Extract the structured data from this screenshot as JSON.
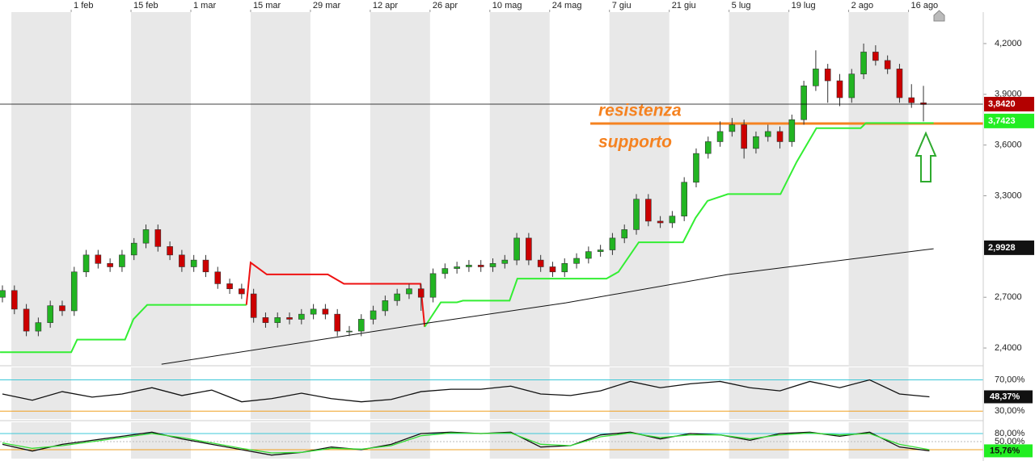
{
  "chart_data": [
    {
      "type": "candlestick",
      "xlim": [
        0,
        164
      ],
      "ylim": [
        2.3,
        4.386
      ],
      "xticks": [
        {
          "value": 11.5,
          "label": "1 feb"
        },
        {
          "value": 21.5,
          "label": "15 feb"
        },
        {
          "value": 31.5,
          "label": "1 mar"
        },
        {
          "value": 41.5,
          "label": "15 mar"
        },
        {
          "value": 51.5,
          "label": "29 mar"
        },
        {
          "value": 61.5,
          "label": "12 apr"
        },
        {
          "value": 71.5,
          "label": "26 apr"
        },
        {
          "value": 81.5,
          "label": "10 mag"
        },
        {
          "value": 91.5,
          "label": "24 mag"
        },
        {
          "value": 101.5,
          "label": "7 giu"
        },
        {
          "value": 111.5,
          "label": "21 giu"
        },
        {
          "value": 121.5,
          "label": "5 lug"
        },
        {
          "value": 131.5,
          "label": "19 lug"
        },
        {
          "value": 141.5,
          "label": "2 ago"
        },
        {
          "value": 151.5,
          "label": "16 ago"
        }
      ],
      "yticks": [
        {
          "value": 4.2,
          "label": "4,2000"
        },
        {
          "value": 3.9,
          "label": "3,9000"
        },
        {
          "value": 3.6,
          "label": "3,6000"
        },
        {
          "value": 3.3,
          "label": "3,3000"
        },
        {
          "value": 2.7,
          "label": "2,7000"
        },
        {
          "value": 2.4,
          "label": "2,4000"
        }
      ],
      "x": [
        0,
        2,
        4,
        6,
        8,
        10,
        12,
        14,
        16,
        18,
        20,
        22,
        24,
        26,
        28,
        30,
        32,
        34,
        36,
        38,
        40,
        42,
        44,
        46,
        48,
        50,
        52,
        54,
        56,
        58,
        60,
        62,
        64,
        66,
        68,
        70,
        72,
        74,
        76,
        78,
        80,
        82,
        84,
        86,
        88,
        90,
        92,
        94,
        96,
        98,
        100,
        102,
        104,
        106,
        108,
        110,
        112,
        114,
        116,
        118,
        120,
        122,
        124,
        126,
        128,
        130,
        132,
        134,
        136,
        138,
        140,
        142,
        144,
        146,
        148,
        150,
        152,
        154
      ],
      "open": [
        2.7,
        2.74,
        2.63,
        2.5,
        2.55,
        2.65,
        2.62,
        2.85,
        2.95,
        2.9,
        2.88,
        2.95,
        3.02,
        3.1,
        3.0,
        2.95,
        2.88,
        2.92,
        2.85,
        2.78,
        2.75,
        2.72,
        2.58,
        2.55,
        2.58,
        2.57,
        2.6,
        2.63,
        2.6,
        2.5,
        2.5,
        2.57,
        2.62,
        2.68,
        2.72,
        2.75,
        2.7,
        2.84,
        2.87,
        2.88,
        2.89,
        2.88,
        2.9,
        2.92,
        3.05,
        2.92,
        2.88,
        2.85,
        2.9,
        2.93,
        2.97,
        2.98,
        3.05,
        3.1,
        3.28,
        3.15,
        3.14,
        3.18,
        3.38,
        3.55,
        3.62,
        3.68,
        3.72,
        3.58,
        3.65,
        3.68,
        3.62,
        3.75,
        3.95,
        4.05,
        3.98,
        3.88,
        4.02,
        4.15,
        4.1,
        4.05,
        3.88,
        3.85
      ],
      "high": [
        2.77,
        2.77,
        2.66,
        2.58,
        2.68,
        2.68,
        2.88,
        2.98,
        2.98,
        2.93,
        2.98,
        3.05,
        3.13,
        3.13,
        3.03,
        2.98,
        2.95,
        2.95,
        2.88,
        2.81,
        2.78,
        2.75,
        2.61,
        2.61,
        2.61,
        2.63,
        2.66,
        2.66,
        2.63,
        2.53,
        2.6,
        2.65,
        2.71,
        2.75,
        2.78,
        2.78,
        2.87,
        2.9,
        2.91,
        2.92,
        2.92,
        2.93,
        2.95,
        3.08,
        3.08,
        2.95,
        2.91,
        2.93,
        2.96,
        3.0,
        3.01,
        3.08,
        3.13,
        3.31,
        3.31,
        3.18,
        3.21,
        3.41,
        3.58,
        3.65,
        3.74,
        3.76,
        3.75,
        3.68,
        3.72,
        3.71,
        3.78,
        3.98,
        4.16,
        4.08,
        4.02,
        4.05,
        4.2,
        4.19,
        4.13,
        4.08,
        3.96,
        3.95
      ],
      "low": [
        2.67,
        2.6,
        2.47,
        2.47,
        2.52,
        2.59,
        2.59,
        2.82,
        2.87,
        2.85,
        2.85,
        2.92,
        2.99,
        2.97,
        2.92,
        2.85,
        2.85,
        2.82,
        2.75,
        2.72,
        2.69,
        2.55,
        2.52,
        2.52,
        2.54,
        2.54,
        2.57,
        2.57,
        2.47,
        2.47,
        2.47,
        2.54,
        2.59,
        2.65,
        2.69,
        2.62,
        2.67,
        2.81,
        2.84,
        2.85,
        2.85,
        2.85,
        2.87,
        2.89,
        2.89,
        2.85,
        2.82,
        2.82,
        2.87,
        2.9,
        2.94,
        2.95,
        3.02,
        3.07,
        3.12,
        3.11,
        3.11,
        3.15,
        3.35,
        3.52,
        3.59,
        3.65,
        3.52,
        3.55,
        3.62,
        3.58,
        3.59,
        3.72,
        3.92,
        3.85,
        3.83,
        3.85,
        3.99,
        4.07,
        4.02,
        3.85,
        3.82,
        3.74
      ],
      "close": [
        2.74,
        2.63,
        2.5,
        2.55,
        2.65,
        2.62,
        2.85,
        2.95,
        2.9,
        2.88,
        2.95,
        3.02,
        3.1,
        3.0,
        2.95,
        2.88,
        2.92,
        2.85,
        2.78,
        2.75,
        2.72,
        2.58,
        2.55,
        2.58,
        2.57,
        2.6,
        2.63,
        2.6,
        2.5,
        2.5,
        2.57,
        2.62,
        2.68,
        2.72,
        2.75,
        2.7,
        2.84,
        2.87,
        2.88,
        2.89,
        2.88,
        2.9,
        2.92,
        3.05,
        2.92,
        2.88,
        2.85,
        2.9,
        2.93,
        2.97,
        2.98,
        3.05,
        3.1,
        3.28,
        3.15,
        3.14,
        3.18,
        3.38,
        3.55,
        3.62,
        3.68,
        3.72,
        3.58,
        3.65,
        3.68,
        3.62,
        3.75,
        3.95,
        4.05,
        3.98,
        3.88,
        4.02,
        4.15,
        4.1,
        4.05,
        3.88,
        3.85,
        3.84
      ],
      "up_color": "#22b422",
      "down_color": "#cc0000",
      "lines": [
        {
          "color": "#33ee33",
          "x": [
            -0.4,
            11.5,
            12.5,
            20.5,
            21.9,
            24.2,
            40.8
          ],
          "values": [
            2.375,
            2.375,
            2.45,
            2.45,
            2.57,
            2.655,
            2.655
          ]
        },
        {
          "color": "#ee1111",
          "x": [
            40.8,
            41.5,
            44.2,
            54.4,
            57.1,
            69.9,
            70.6
          ],
          "values": [
            2.655,
            2.905,
            2.835,
            2.835,
            2.78,
            2.78,
            2.525
          ]
        },
        {
          "color": "#33ee33",
          "x": [
            70.6,
            73.3,
            76,
            77,
            84.8,
            86.1,
            101,
            103,
            106.4,
            113.8,
            115.9,
            117.9,
            121.3,
            130.1,
            132.8,
            136.1,
            143.5,
            144.4,
            155.7
          ],
          "values": [
            2.525,
            2.67,
            2.67,
            2.68,
            2.68,
            2.81,
            2.81,
            2.85,
            3.025,
            3.025,
            3.17,
            3.27,
            3.31,
            3.31,
            3.5,
            3.7,
            3.7,
            3.73,
            3.73
          ]
        },
        {
          "color": "#111111",
          "x": [
            26.6,
            53.7,
            71.2,
            94.2,
            121.2,
            155.7
          ],
          "values": [
            2.304,
            2.452,
            2.548,
            2.667,
            2.834,
            2.987
          ]
        }
      ],
      "levels": [
        {
          "value": 3.842,
          "label": "3,8420",
          "color": "#b30000",
          "line": "#000000"
        },
        {
          "value": 3.7423,
          "label": "3,7423",
          "color": "#22ee22"
        },
        {
          "value": 2.9928,
          "label": "2,9928",
          "color": "#111111"
        }
      ],
      "hline": {
        "value": 3.727,
        "x": [
          98.3,
          164
        ],
        "color": "#f58220"
      },
      "annotations": [
        "resistenza",
        "supporto"
      ]
    },
    {
      "type": "line",
      "xlim": [
        0,
        164
      ],
      "ylim": [
        20,
        86
      ],
      "yticks": [
        {
          "value": 70,
          "label": "70,00%",
          "color": "#3cc8d8"
        },
        {
          "value": 30,
          "label": "30,00%",
          "color": "#f0a020"
        }
      ],
      "series": [
        {
          "color": "#111111",
          "x": [
            0,
            5,
            10,
            15,
            20,
            25,
            30,
            35,
            40,
            45,
            50,
            55,
            60,
            65,
            70,
            75,
            80,
            85,
            90,
            95,
            100,
            105,
            110,
            115,
            120,
            125,
            130,
            135,
            140,
            145,
            150,
            155
          ],
          "values": [
            52,
            44,
            55,
            48,
            52,
            60,
            50,
            57,
            42,
            46,
            53,
            46,
            42,
            45,
            55,
            58,
            58,
            62,
            52,
            50,
            56,
            68,
            60,
            65,
            68,
            60,
            56,
            68,
            60,
            70,
            52,
            48.37
          ]
        }
      ],
      "last_label": {
        "value": 48.37,
        "label": "48,37%",
        "color": "#111111"
      }
    },
    {
      "type": "line",
      "xlim": [
        0,
        164
      ],
      "ylim": [
        -13,
        122
      ],
      "yticks": [
        {
          "value": 80,
          "label": "80,00%",
          "color": "#3cc8d8"
        },
        {
          "value": 50,
          "label": "50,00%",
          "color": "#bbbbbb"
        },
        {
          "value": 20,
          "label": "",
          "color": "#f0a020"
        }
      ],
      "series": [
        {
          "color": "#111111",
          "x": [
            0,
            5,
            10,
            15,
            20,
            25,
            30,
            35,
            40,
            45,
            50,
            55,
            60,
            65,
            70,
            75,
            80,
            85,
            90,
            95,
            100,
            105,
            110,
            115,
            120,
            125,
            130,
            135,
            140,
            145,
            150,
            155
          ],
          "values": [
            40,
            15,
            40,
            55,
            70,
            85,
            60,
            40,
            20,
            0,
            10,
            30,
            20,
            40,
            80,
            85,
            80,
            85,
            30,
            35,
            75,
            85,
            60,
            80,
            75,
            55,
            80,
            85,
            70,
            85,
            30,
            15.76
          ]
        },
        {
          "color": "#33dd33",
          "x": [
            0,
            5,
            10,
            15,
            20,
            25,
            30,
            35,
            40,
            45,
            50,
            55,
            60,
            65,
            70,
            75,
            80,
            85,
            90,
            95,
            100,
            105,
            110,
            115,
            120,
            125,
            130,
            135,
            140,
            145,
            150,
            155
          ],
          "values": [
            45,
            25,
            35,
            50,
            65,
            80,
            65,
            45,
            25,
            8,
            10,
            25,
            22,
            35,
            72,
            82,
            80,
            82,
            40,
            35,
            68,
            82,
            65,
            75,
            75,
            60,
            75,
            82,
            75,
            80,
            40,
            20
          ]
        }
      ],
      "last_label": {
        "value": 15.76,
        "label": "15,76%",
        "color": "#22ee22"
      }
    }
  ]
}
